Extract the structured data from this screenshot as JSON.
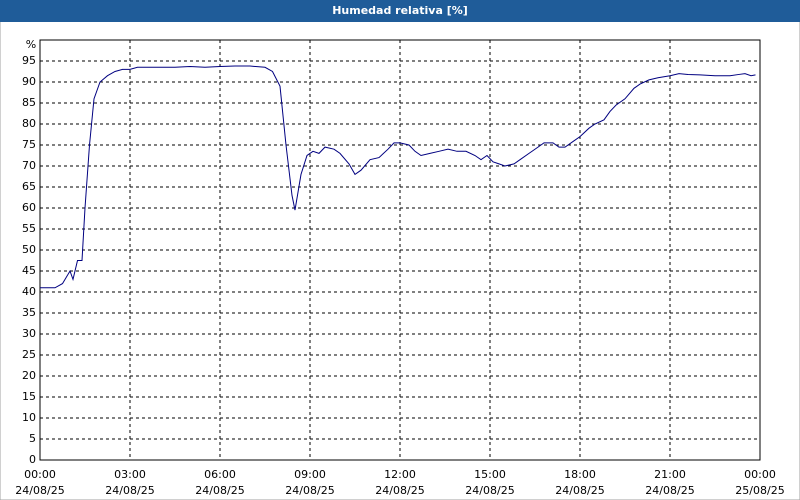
{
  "chart_data": {
    "type": "line",
    "title": "Humedad relativa [%]",
    "y_label": "%",
    "x": [
      0,
      0.25,
      0.5,
      0.75,
      1.0,
      1.1,
      1.25,
      1.4,
      1.5,
      1.65,
      1.8,
      2.0,
      2.25,
      2.5,
      2.75,
      3,
      3.25,
      3.5,
      4,
      4.5,
      5,
      5.5,
      6,
      6.5,
      7,
      7.5,
      7.75,
      8.0,
      8.2,
      8.4,
      8.5,
      8.7,
      8.9,
      9.1,
      9.3,
      9.5,
      9.8,
      10.0,
      10.3,
      10.5,
      10.7,
      11,
      11.3,
      11.6,
      11.8,
      12,
      12.3,
      12.5,
      12.7,
      13,
      13.3,
      13.6,
      13.9,
      14.2,
      14.5,
      14.7,
      14.9,
      15.1,
      15.3,
      15.5,
      15.8,
      16,
      16.3,
      16.6,
      16.8,
      17.1,
      17.3,
      17.5,
      17.8,
      18,
      18.3,
      18.5,
      18.8,
      19,
      19.2,
      19.5,
      19.8,
      20,
      20.3,
      20.6,
      21,
      21.3,
      21.6,
      22,
      22.5,
      23,
      23.3,
      23.5,
      23.7,
      23.85
    ],
    "series": [
      {
        "name": "Humedad relativa",
        "color": "#000080",
        "values": [
          41,
          41,
          41,
          42,
          45,
          43,
          47.5,
          47.5,
          60,
          75,
          86,
          90,
          91.5,
          92.5,
          93,
          93,
          93.5,
          93.5,
          93.5,
          93.5,
          93.7,
          93.5,
          93.7,
          93.8,
          93.8,
          93.5,
          92.5,
          89,
          75,
          63,
          59.5,
          68,
          72.5,
          73.5,
          73,
          74.5,
          74,
          73,
          70.5,
          68,
          69,
          71.5,
          72,
          74,
          75.5,
          75.5,
          75,
          73.5,
          72.5,
          73,
          73.5,
          74,
          73.5,
          73.5,
          72.5,
          71.5,
          72.5,
          71,
          70.5,
          70,
          70.5,
          71.5,
          73,
          74.5,
          75.5,
          75.5,
          74.5,
          74.5,
          76,
          77,
          79,
          80,
          81,
          83,
          84.5,
          86,
          88.5,
          89.5,
          90.5,
          91,
          91.5,
          92,
          91.8,
          91.7,
          91.5,
          91.5,
          91.8,
          92,
          91.5,
          91.7
        ]
      }
    ],
    "xlim": [
      0,
      24
    ],
    "xticks": [
      {
        "value": 0,
        "label": [
          "00:00",
          "24/08/25"
        ]
      },
      {
        "value": 3,
        "label": [
          "03:00",
          "24/08/25"
        ]
      },
      {
        "value": 6,
        "label": [
          "06:00",
          "24/08/25"
        ]
      },
      {
        "value": 9,
        "label": [
          "09:00",
          "24/08/25"
        ]
      },
      {
        "value": 12,
        "label": [
          "12:00",
          "24/08/25"
        ]
      },
      {
        "value": 15,
        "label": [
          "15:00",
          "24/08/25"
        ]
      },
      {
        "value": 18,
        "label": [
          "18:00",
          "24/08/25"
        ]
      },
      {
        "value": 21,
        "label": [
          "21:00",
          "24/08/25"
        ]
      },
      {
        "value": 24,
        "label": [
          "00:00",
          "25/08/25"
        ]
      }
    ],
    "ylim": [
      0,
      100
    ],
    "yticks": [
      0,
      5,
      10,
      15,
      20,
      25,
      30,
      35,
      40,
      45,
      50,
      55,
      60,
      65,
      70,
      75,
      80,
      85,
      90,
      95
    ],
    "grid": true
  }
}
